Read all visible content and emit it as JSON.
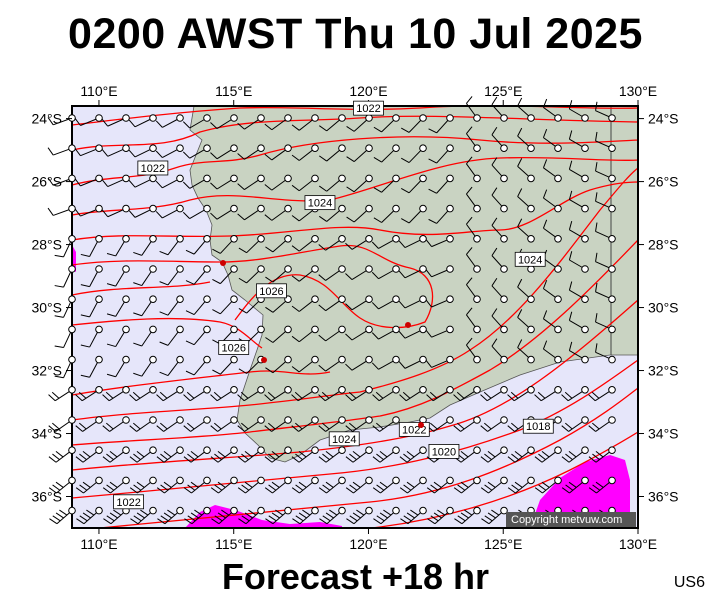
{
  "header": {
    "title": "0200 AWST Thu 10 Jul 2025"
  },
  "footer": {
    "forecast": "Forecast +18 hr",
    "code": "US6"
  },
  "copyright": "Copyright metvuw.com",
  "map": {
    "lon_labels": [
      "110°E",
      "115°E",
      "120°E",
      "125°E",
      "130°E"
    ],
    "lat_labels": [
      "24°S",
      "26°S",
      "28°S",
      "30°S",
      "32°S",
      "34°S",
      "36°S"
    ],
    "isobar_labels": [
      {
        "text": "1022",
        "lon": 112.0,
        "lat": -25.6
      },
      {
        "text": "1022",
        "lon": 120.0,
        "lat": -23.7
      },
      {
        "text": "1024",
        "lon": 118.2,
        "lat": -26.7
      },
      {
        "text": "1024",
        "lon": 126.0,
        "lat": -28.5
      },
      {
        "text": "1026",
        "lon": 116.4,
        "lat": -29.5
      },
      {
        "text": "1026",
        "lon": 115.0,
        "lat": -31.3
      },
      {
        "text": "1024",
        "lon": 119.1,
        "lat": -34.2
      },
      {
        "text": "1022",
        "lon": 121.7,
        "lat": -33.9
      },
      {
        "text": "1020",
        "lon": 122.8,
        "lat": -34.6
      },
      {
        "text": "1018",
        "lon": 126.3,
        "lat": -33.8
      },
      {
        "text": "1022",
        "lon": 111.1,
        "lat": -36.2
      }
    ],
    "colors": {
      "ocean": "#e6e6fa",
      "land": "#c9d3c2",
      "isobar": "#ff0000",
      "precip": "#ff00ff",
      "wind": "#000000"
    }
  }
}
